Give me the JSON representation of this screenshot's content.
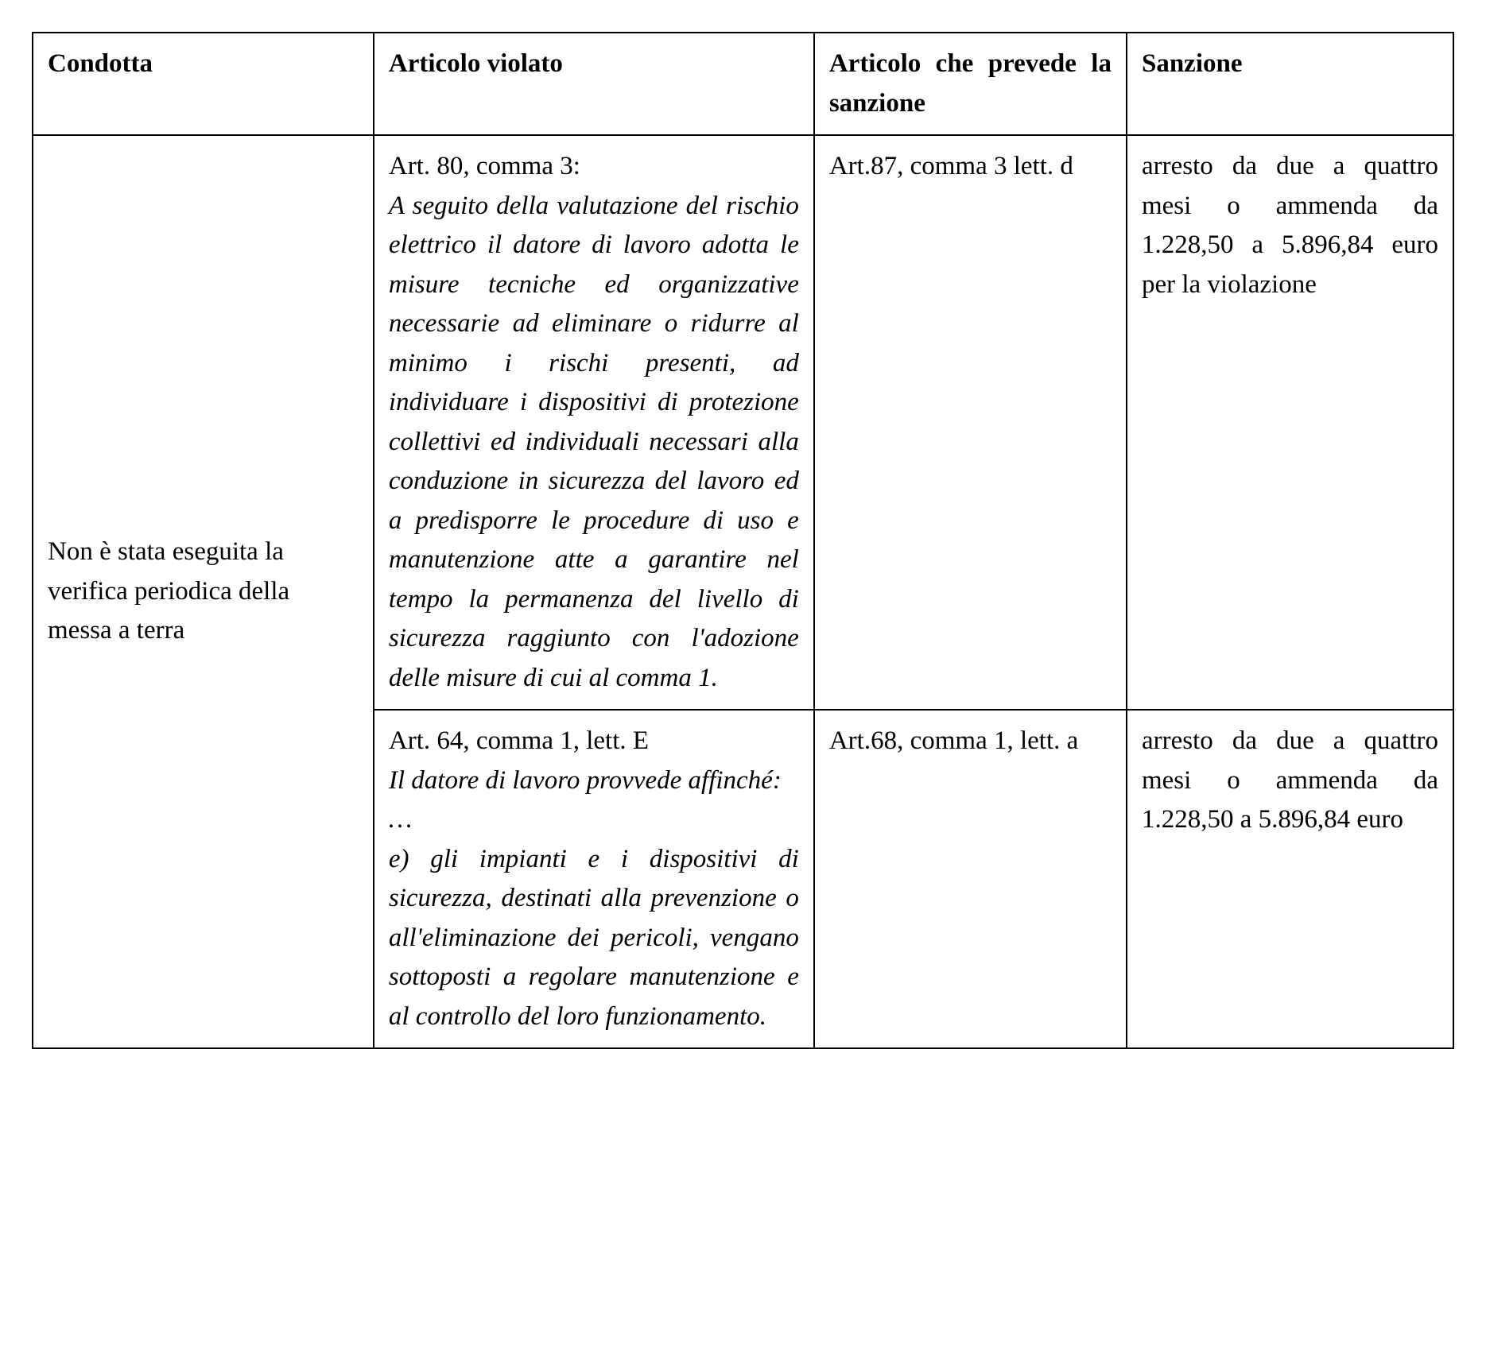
{
  "table": {
    "headers": {
      "condotta": "Condotta",
      "articolo_violato": "Articolo violato",
      "articolo_sanzione": "Articolo che prevede la sanzione",
      "sanzione": "Sanzione"
    },
    "body": {
      "condotta": "Non è stata eseguita la verifica periodica della messa a terra",
      "rows": [
        {
          "violato_head": "Art. 80, comma 3:",
          "violato_body": "A seguito della valutazione del rischio elettrico il datore di lavoro adotta le misure tecniche ed organizzative necessarie ad eliminare o ridurre al minimo i rischi presenti, ad individuare i dispositivi di protezione collettivi ed individuali necessari alla conduzione in sicurezza del lavoro ed a predisporre le procedure di uso e manutenzione atte a garantire nel tempo la permanenza del livello di sicurezza raggiunto con l'adozione delle misure di cui al comma 1.",
          "art_sanzione": "Art.87, comma 3 lett. d",
          "sanzione": "arresto da due a quattro mesi o ammenda da 1.228,50 a 5.896,84 euro per la violazione"
        },
        {
          "violato_head": "Art. 64, comma 1, lett. E",
          "violato_intro": "Il datore di lavoro provvede affinché:",
          "violato_ellipsis": "…",
          "violato_body": "e) gli impianti e i dispositivi di sicurezza, destinati alla prevenzione o all'eliminazione dei pericoli, vengano sottoposti a regolare manutenzione e al controllo del loro funzionamento.",
          "art_sanzione": "Art.68, comma 1, lett. a",
          "sanzione": "arresto da due a quattro mesi o ammenda da 1.228,50 a 5.896,84 euro"
        }
      ]
    }
  }
}
